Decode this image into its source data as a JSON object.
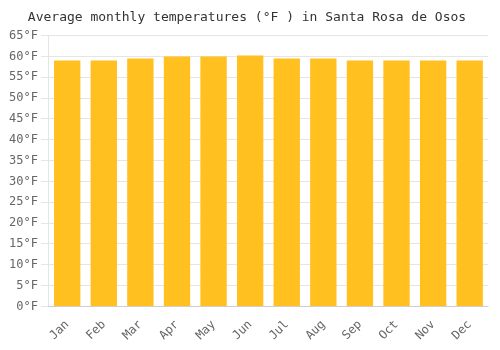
{
  "chart_data": {
    "type": "bar",
    "title": "Average monthly temperatures (°F ) in Santa Rosa de Osos",
    "categories": [
      "Jan",
      "Feb",
      "Mar",
      "Apr",
      "May",
      "Jun",
      "Jul",
      "Aug",
      "Sep",
      "Oct",
      "Nov",
      "Dec"
    ],
    "values": [
      59.0,
      59.0,
      59.5,
      60.0,
      60.0,
      60.2,
      59.5,
      59.5,
      59.0,
      59.0,
      59.0,
      59.0
    ],
    "color": "#FFC020",
    "ylim": [
      0,
      65
    ],
    "yticks": [
      {
        "value": 0,
        "label": "0°F"
      },
      {
        "value": 5,
        "label": "5°F"
      },
      {
        "value": 10,
        "label": "10°F"
      },
      {
        "value": 15,
        "label": "15°F"
      },
      {
        "value": 20,
        "label": "20°F"
      },
      {
        "value": 25,
        "label": "25°F"
      },
      {
        "value": 30,
        "label": "30°F"
      },
      {
        "value": 35,
        "label": "35°F"
      },
      {
        "value": 40,
        "label": "40°F"
      },
      {
        "value": 45,
        "label": "45°F"
      },
      {
        "value": 50,
        "label": "50°F"
      },
      {
        "value": 55,
        "label": "55°F"
      },
      {
        "value": 60,
        "label": "60°F"
      },
      {
        "value": 65,
        "label": "65°F"
      }
    ],
    "grid": true
  }
}
